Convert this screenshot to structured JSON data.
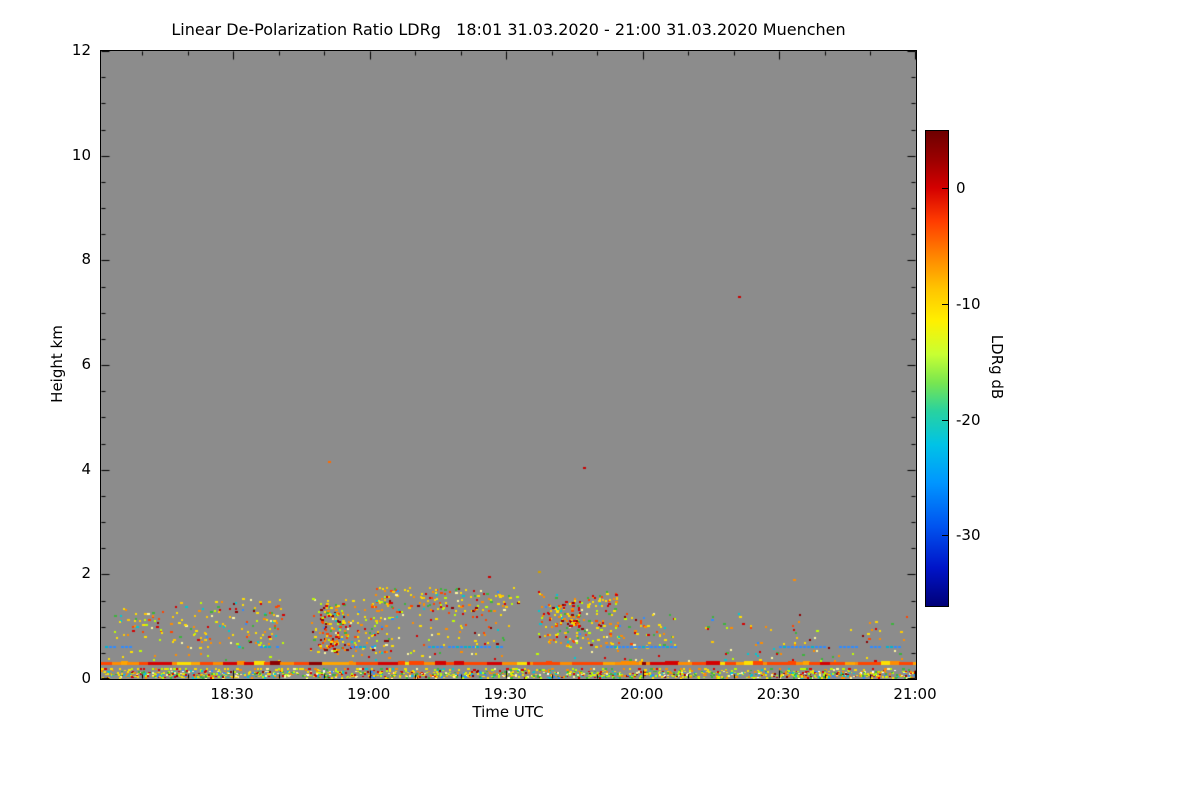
{
  "page": {
    "background": "#ffffff"
  },
  "chart_data": {
    "type": "heatmap",
    "title": "Linear De-Polarization Ratio LDRg   18:01 31.03.2020 - 21:00 31.03.2020 Muenchen",
    "xlabel": "Time UTC",
    "ylabel": "Height km",
    "station": "Muenchen",
    "time_start": "18:01 31.03.2020",
    "time_end": "21:00 31.03.2020",
    "x_total_minutes": 179,
    "x_ticks": [
      "18:30",
      "19:00",
      "19:30",
      "20:00",
      "20:30",
      "21:00"
    ],
    "x_tick_minutes": [
      29,
      59,
      89,
      119,
      149,
      179
    ],
    "x_minor_every_min": 10,
    "ylim": [
      0,
      12
    ],
    "y_ticks": [
      0,
      2,
      4,
      6,
      8,
      10,
      12
    ],
    "y_minor_step": 0.5,
    "background_color": "#8c8c8c",
    "grid": false,
    "colorbar": {
      "label": "LDRg dB",
      "ticks": [
        0,
        -10,
        -20,
        -30
      ],
      "vmax": 5,
      "vmin": -36,
      "gradient": [
        {
          "pos": 0,
          "color": "#6e0000"
        },
        {
          "pos": 6,
          "color": "#9b0000"
        },
        {
          "pos": 12,
          "color": "#d40000"
        },
        {
          "pos": 19,
          "color": "#ff3c00"
        },
        {
          "pos": 26,
          "color": "#ff8200"
        },
        {
          "pos": 33,
          "color": "#ffc300"
        },
        {
          "pos": 40,
          "color": "#fff000"
        },
        {
          "pos": 47,
          "color": "#c8ff32"
        },
        {
          "pos": 53,
          "color": "#78e650"
        },
        {
          "pos": 59,
          "color": "#28d2a0"
        },
        {
          "pos": 66,
          "color": "#00c3e6"
        },
        {
          "pos": 74,
          "color": "#0096ff"
        },
        {
          "pos": 83,
          "color": "#0055f0"
        },
        {
          "pos": 92,
          "color": "#0014c8"
        },
        {
          "pos": 100,
          "color": "#000078"
        }
      ]
    },
    "palettes": {
      "default": [
        [
          "#ffe000",
          20
        ],
        [
          "#ffc800",
          10
        ],
        [
          "#ff8c00",
          15
        ],
        [
          "#ff4500",
          10
        ],
        [
          "#d40000",
          8
        ],
        [
          "#8c0000",
          4
        ],
        [
          "#bfff00",
          8
        ],
        [
          "#3cb43c",
          7
        ],
        [
          "#00c8d2",
          4
        ],
        [
          "#2e8bff",
          3
        ],
        [
          "#fff7a0",
          5
        ]
      ],
      "red_heavy": [
        [
          "#d40000",
          22
        ],
        [
          "#8c0000",
          12
        ],
        [
          "#ff4500",
          18
        ],
        [
          "#ff8c00",
          14
        ],
        [
          "#ffe000",
          14
        ],
        [
          "#bfff00",
          6
        ],
        [
          "#3cb43c",
          5
        ],
        [
          "#00c8d2",
          3
        ]
      ],
      "ground": [
        [
          "#ffe000",
          18
        ],
        [
          "#ff8c00",
          12
        ],
        [
          "#d40000",
          8
        ],
        [
          "#8c0000",
          4
        ],
        [
          "#3cb43c",
          12
        ],
        [
          "#bfff00",
          12
        ],
        [
          "#00c8d2",
          7
        ],
        [
          "#2e8bff",
          5
        ],
        [
          "#fff7a0",
          8
        ],
        [
          "#ffffff",
          2
        ]
      ],
      "echo_overlay": [
        [
          "#ff4500",
          30
        ],
        [
          "#d40000",
          16
        ],
        [
          "#ff8c00",
          28
        ],
        [
          "#ffa500",
          14
        ],
        [
          "#ffe000",
          8
        ],
        [
          "#8c0000",
          4
        ]
      ],
      "dotted": [
        [
          "#ffe000",
          22
        ],
        [
          "#ff8c00",
          14
        ],
        [
          "#d40000",
          10
        ],
        [
          "#bfff00",
          14
        ],
        [
          "#3cb43c",
          10
        ],
        [
          "#00c8d2",
          5
        ],
        [
          "#fff7a0",
          8
        ]
      ]
    },
    "features": {
      "surface_echo": {
        "height_km": 0.3,
        "base_color": "#ff8c00",
        "palette": "echo_overlay",
        "note": "continuous orange-red echo line across full time span"
      },
      "dotted_line": {
        "height_km": 0.2,
        "coverage": 0.55,
        "palette": "dotted"
      },
      "ground_clutter": {
        "h0": 0.02,
        "h1": 0.16,
        "count": 1300,
        "palette": "ground"
      },
      "blue_dashes": {
        "height_km": 0.62,
        "color": "#2e8bff",
        "segments_min": [
          [
            1,
            8
          ],
          [
            35,
            39
          ],
          [
            55,
            60
          ],
          [
            72,
            88
          ],
          [
            111,
            127
          ],
          [
            149,
            166
          ],
          [
            169,
            176
          ]
        ]
      },
      "clusters": [
        {
          "t0": 3,
          "t1": 14,
          "h0": 0.7,
          "h1": 1.35,
          "count": 40,
          "palette": "default"
        },
        {
          "t0": 15,
          "t1": 40,
          "h0": 0.6,
          "h1": 1.55,
          "count": 130,
          "palette": "default"
        },
        {
          "t0": 46,
          "t1": 64,
          "h0": 0.5,
          "h1": 1.55,
          "count": 170,
          "palette": "default"
        },
        {
          "t0": 48,
          "t1": 54,
          "h0": 0.55,
          "h1": 1.3,
          "count": 80,
          "palette": "red_heavy"
        },
        {
          "t0": 60,
          "t1": 92,
          "h0": 1.3,
          "h1": 1.75,
          "count": 140,
          "palette": "default"
        },
        {
          "t0": 63,
          "t1": 90,
          "h0": 0.6,
          "h1": 1.3,
          "count": 55,
          "palette": "default"
        },
        {
          "t0": 96,
          "t1": 114,
          "h0": 0.6,
          "h1": 1.7,
          "count": 180,
          "palette": "default"
        },
        {
          "t0": 98,
          "t1": 105,
          "h0": 1.0,
          "h1": 1.5,
          "count": 60,
          "palette": "red_heavy"
        },
        {
          "t0": 113,
          "t1": 126,
          "h0": 0.6,
          "h1": 1.25,
          "count": 50,
          "palette": "default"
        },
        {
          "t0": 128,
          "t1": 178,
          "h0": 0.5,
          "h1": 1.25,
          "count": 55,
          "palette": "default"
        },
        {
          "t0": 0,
          "t1": 179,
          "h0": 0.35,
          "h1": 0.55,
          "count": 70,
          "palette": "dotted"
        }
      ],
      "isolated_points": [
        {
          "t": 50,
          "h": 4.15,
          "color": "#ff6a00"
        },
        {
          "t": 106,
          "h": 4.05,
          "color": "#c80000"
        },
        {
          "t": 140,
          "h": 7.3,
          "color": "#c80000"
        },
        {
          "t": 85,
          "h": 1.95,
          "color": "#c80000"
        },
        {
          "t": 96,
          "h": 2.05,
          "color": "#d2a000"
        },
        {
          "t": 152,
          "h": 1.9,
          "color": "#ff8c00"
        },
        {
          "t": 170,
          "h": 1.1,
          "color": "#ffd700"
        }
      ]
    }
  }
}
